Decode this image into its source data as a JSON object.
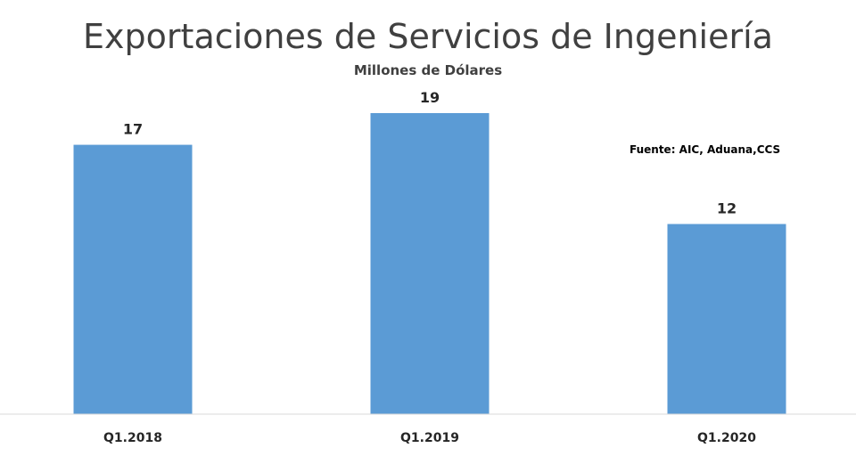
{
  "chart_data": {
    "type": "bar",
    "title": "Exportaciones de Servicios de Ingeniería",
    "subtitle": "Millones de Dólares",
    "source_note": "Fuente: AIC, Aduana,CCS",
    "categories": [
      "Q1.2018",
      "Q1.2019",
      "Q1.2020"
    ],
    "values": [
      17,
      19,
      12
    ],
    "data_labels": [
      "17",
      "19",
      "12"
    ],
    "ylim": [
      0,
      19
    ],
    "grid": false,
    "legend": "none",
    "bar_color": "#5b9bd5",
    "axis_color": "#d9d9d9"
  }
}
